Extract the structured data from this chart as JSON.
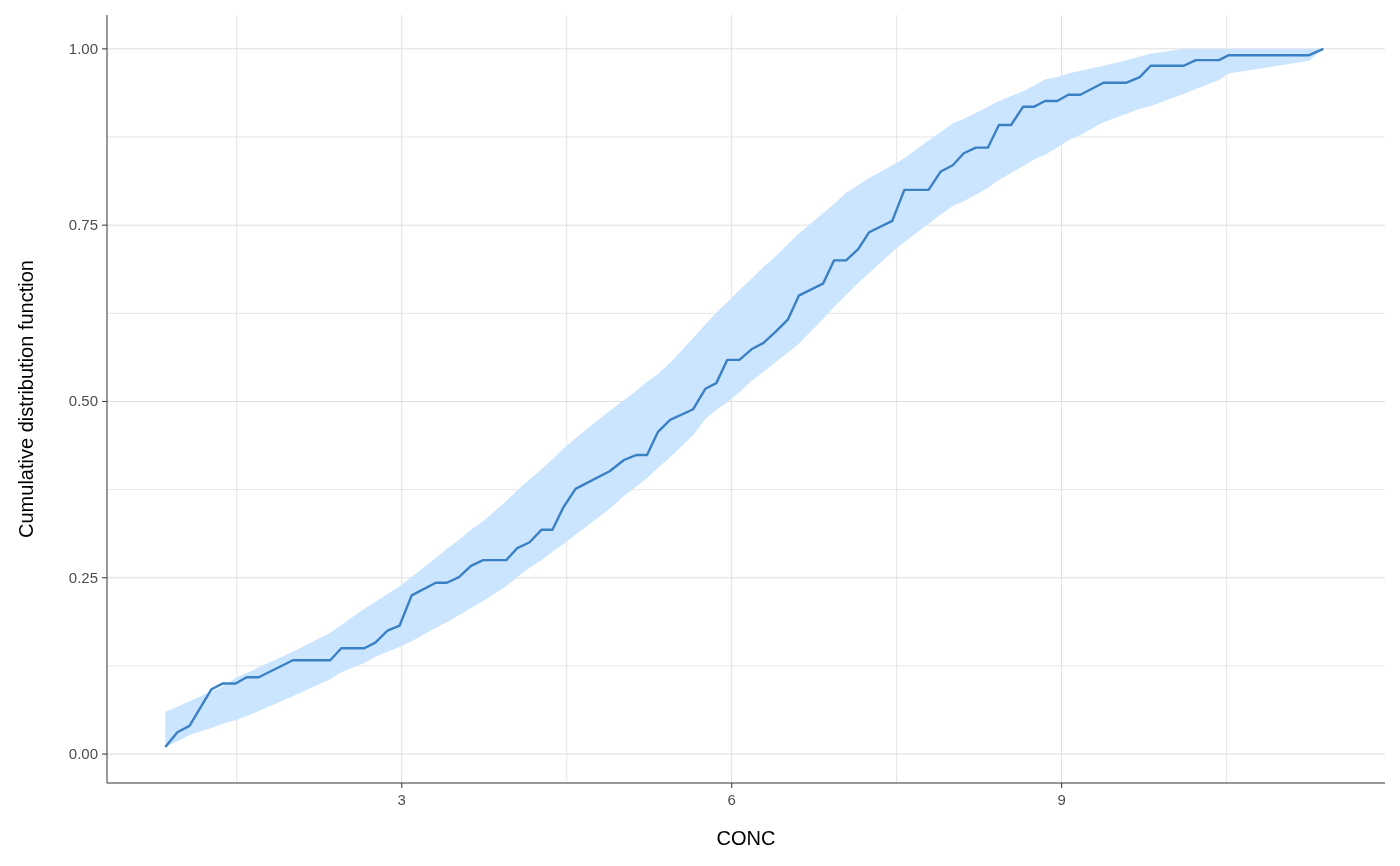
{
  "chart_data": {
    "type": "line",
    "xlabel": "CONC",
    "ylabel": "Cumulative distribution function",
    "xlim": [
      0.32,
      11.94
    ],
    "ylim": [
      -0.041,
      1.048
    ],
    "xticks": [
      {
        "value": 1.5,
        "label": null
      },
      3,
      {
        "value": 4.5,
        "label": null
      },
      6,
      {
        "value": 7.5,
        "label": null
      },
      9,
      {
        "value": 10.5,
        "label": null
      }
    ],
    "yticks": [
      {
        "value": 0,
        "label": "0.00"
      },
      {
        "value": 0.125,
        "label": null
      },
      {
        "value": 0.25,
        "label": "0.25"
      },
      {
        "value": 0.375,
        "label": null
      },
      {
        "value": 0.5,
        "label": "0.50"
      },
      {
        "value": 0.625,
        "label": null
      },
      {
        "value": 0.75,
        "label": "0.75"
      },
      {
        "value": 0.875,
        "label": null
      },
      {
        "value": 1,
        "label": "1.00"
      }
    ],
    "grid": true,
    "series": [
      {
        "color": "#3a80c4",
        "x": [
          0.85,
          0.96,
          1.07,
          1.27,
          1.37,
          1.49,
          1.59,
          1.7,
          2.01,
          2.35,
          2.45,
          2.66,
          2.76,
          2.87,
          2.98,
          3.09,
          3.31,
          3.41,
          3.52,
          3.63,
          3.74,
          3.95,
          4.05,
          4.16,
          4.27,
          4.37,
          4.47,
          4.58,
          4.89,
          5.02,
          5.13,
          5.23,
          5.33,
          5.44,
          5.65,
          5.76,
          5.86,
          5.96,
          6.07,
          6.18,
          6.29,
          6.4,
          6.51,
          6.61,
          6.83,
          6.93,
          7.04,
          7.15,
          7.25,
          7.46,
          7.57,
          7.79,
          7.9,
          8.01,
          8.11,
          8.22,
          8.33,
          8.43,
          8.54,
          8.65,
          8.75,
          8.85,
          8.96,
          9.06,
          9.17,
          9.38,
          9.59,
          9.71,
          9.81,
          10.11,
          10.22,
          10.43,
          10.52,
          11.25,
          11.38
        ],
        "values": [
          0.01,
          0.031,
          0.04,
          0.092,
          0.1,
          0.1,
          0.109,
          0.109,
          0.133,
          0.133,
          0.15,
          0.15,
          0.158,
          0.175,
          0.182,
          0.225,
          0.243,
          0.243,
          0.251,
          0.267,
          0.275,
          0.275,
          0.292,
          0.3,
          0.318,
          0.318,
          0.35,
          0.376,
          0.401,
          0.417,
          0.424,
          0.424,
          0.457,
          0.474,
          0.489,
          0.518,
          0.526,
          0.559,
          0.559,
          0.574,
          0.583,
          0.599,
          0.616,
          0.65,
          0.667,
          0.7,
          0.7,
          0.716,
          0.74,
          0.756,
          0.8,
          0.8,
          0.826,
          0.835,
          0.852,
          0.86,
          0.86,
          0.892,
          0.892,
          0.918,
          0.918,
          0.926,
          0.926,
          0.935,
          0.935,
          0.952,
          0.952,
          0.96,
          0.976,
          0.976,
          0.984,
          0.984,
          0.991,
          0.991,
          1.0
        ],
        "lower": [
          0.01,
          0.018,
          0.027,
          0.037,
          0.043,
          0.048,
          0.054,
          0.061,
          0.082,
          0.106,
          0.116,
          0.129,
          0.138,
          0.145,
          0.152,
          0.16,
          0.179,
          0.187,
          0.197,
          0.207,
          0.217,
          0.238,
          0.251,
          0.264,
          0.275,
          0.287,
          0.298,
          0.311,
          0.348,
          0.366,
          0.379,
          0.391,
          0.406,
          0.421,
          0.452,
          0.475,
          0.488,
          0.499,
          0.513,
          0.529,
          0.542,
          0.556,
          0.569,
          0.582,
          0.617,
          0.634,
          0.651,
          0.668,
          0.682,
          0.712,
          0.726,
          0.752,
          0.765,
          0.777,
          0.784,
          0.793,
          0.803,
          0.814,
          0.824,
          0.834,
          0.843,
          0.85,
          0.86,
          0.87,
          0.878,
          0.896,
          0.908,
          0.915,
          0.919,
          0.936,
          0.943,
          0.956,
          0.965,
          0.983,
          1.0
        ],
        "upper": [
          0.06,
          0.067,
          0.075,
          0.089,
          0.096,
          0.108,
          0.115,
          0.123,
          0.145,
          0.172,
          0.183,
          0.206,
          0.216,
          0.227,
          0.238,
          0.251,
          0.278,
          0.291,
          0.304,
          0.318,
          0.33,
          0.359,
          0.374,
          0.389,
          0.404,
          0.418,
          0.433,
          0.448,
          0.487,
          0.502,
          0.515,
          0.528,
          0.539,
          0.555,
          0.59,
          0.609,
          0.626,
          0.641,
          0.658,
          0.674,
          0.691,
          0.706,
          0.723,
          0.738,
          0.767,
          0.78,
          0.796,
          0.807,
          0.817,
          0.835,
          0.845,
          0.87,
          0.882,
          0.894,
          0.901,
          0.909,
          0.918,
          0.926,
          0.933,
          0.94,
          0.948,
          0.957,
          0.96,
          0.965,
          0.969,
          0.976,
          0.984,
          0.989,
          0.993,
          1.0,
          1.0,
          1.0,
          1.0,
          1.0,
          1.0
        ]
      }
    ]
  }
}
